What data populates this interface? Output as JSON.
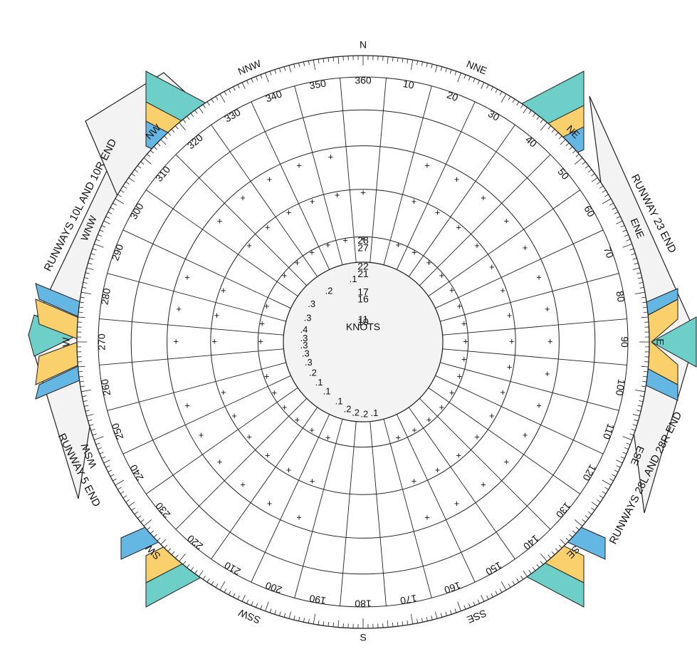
{
  "colors": {
    "teal": "#6ecfc9",
    "yellow": "#f9d06c",
    "blue": "#64b6e3",
    "panel": "#f3f3f3",
    "line": "#222222"
  },
  "runway_labels": [
    {
      "text": "RUNWAYS 10L AND 10R END"
    },
    {
      "text": "RUNWAY 23 END"
    },
    {
      "text": "RUNWAY 5 END"
    },
    {
      "text": "RUNWAYS 28L AND 28R END"
    }
  ],
  "cardinal_labels": [
    {
      "text": "N",
      "deg": 0
    },
    {
      "text": "NNE",
      "deg": 22.5
    },
    {
      "text": "NE",
      "deg": 45
    },
    {
      "text": "ENE",
      "deg": 67.5
    },
    {
      "text": "E",
      "deg": 90
    },
    {
      "text": "ESE",
      "deg": 112.5
    },
    {
      "text": "SE",
      "deg": 135
    },
    {
      "text": "SSE",
      "deg": 157.5
    },
    {
      "text": "S",
      "deg": 180
    },
    {
      "text": "SSW",
      "deg": 202.5
    },
    {
      "text": "SW",
      "deg": 225
    },
    {
      "text": "WSW",
      "deg": 247.5
    },
    {
      "text": "W",
      "deg": 270
    },
    {
      "text": "WNW",
      "deg": 292.5
    },
    {
      "text": "NW",
      "deg": 315
    },
    {
      "text": "NNW",
      "deg": 337.5
    }
  ],
  "degree_labels": [
    "360",
    "10",
    "20",
    "30",
    "40",
    "50",
    "60",
    "70",
    "80",
    "90",
    "100",
    "110",
    "120",
    "130",
    "140",
    "150",
    "160",
    "170",
    "180",
    "190",
    "200",
    "210",
    "220",
    "230",
    "240",
    "250",
    "260",
    "270",
    "280",
    "290",
    "300",
    "310",
    "320",
    "330",
    "340",
    "350"
  ],
  "speed_labels": [
    {
      "text": "KNOTS",
      "r": 0.56
    },
    {
      "text": "10",
      "r": 0.75
    },
    {
      "text": "11",
      "r": 0.85
    },
    {
      "text": "16",
      "r": 1.65
    },
    {
      "text": "17",
      "r": 1.92
    },
    {
      "text": "21",
      "r": 2.63
    },
    {
      "text": "22",
      "r": 2.92
    },
    {
      "text": "27",
      "r": 3.64
    },
    {
      "text": "28",
      "r": 3.94
    }
  ],
  "percentages": [
    {
      "v": ".1",
      "az": 351,
      "r": 1.35
    },
    {
      "v": ".2",
      "az": 326,
      "r": 1.27
    },
    {
      "v": ".3",
      "az": 306,
      "r": 1.37
    },
    {
      "v": ".3",
      "az": 293,
      "r": 1.24
    },
    {
      "v": ".4",
      "az": 281,
      "r": 1.24
    },
    {
      "v": ".3",
      "az": 273,
      "r": 1.2
    },
    {
      "v": ".3",
      "az": 266,
      "r": 1.2
    },
    {
      "v": ".3",
      "az": 258,
      "r": 1.18
    },
    {
      "v": ".3",
      "az": 249,
      "r": 1.17
    },
    {
      "v": ".2",
      "az": 238,
      "r": 1.2
    },
    {
      "v": ".1",
      "az": 227,
      "r": 1.24
    },
    {
      "v": ".1",
      "az": 216,
      "r": 1.3
    },
    {
      "v": ".1",
      "az": 202,
      "r": 1.41
    },
    {
      "v": ".2",
      "az": 193,
      "r": 1.6
    },
    {
      "v": ".2",
      "az": 186,
      "r": 1.69
    },
    {
      "v": ".2",
      "az": 179,
      "r": 1.73
    },
    {
      "v": ".1",
      "az": 171,
      "r": 1.72
    }
  ]
}
